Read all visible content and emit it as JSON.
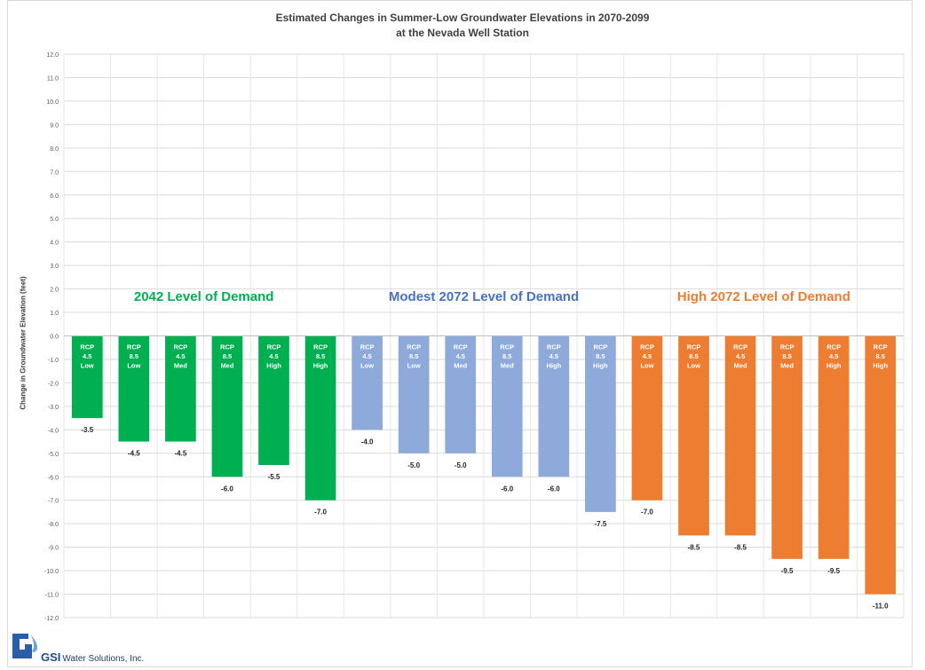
{
  "chart_data": {
    "type": "bar",
    "title": "Estimated Changes in Summer-Low Groundwater Elevations in 2070-2099",
    "subtitle": "at the Nevada Well Station",
    "ylabel": "Change in Groundwater Elevation (feet)",
    "xlabel": "",
    "ylim": [
      -12.0,
      12.0
    ],
    "yticks": [
      "12.0",
      "11.0",
      "10.0",
      "9.0",
      "8.0",
      "7.0",
      "6.0",
      "5.0",
      "4.0",
      "3.0",
      "2.0",
      "1.0",
      "0.0",
      "-1.0",
      "-2.0",
      "-3.0",
      "-4.0",
      "-5.0",
      "-6.0",
      "-7.0",
      "-8.0",
      "-9.0",
      "-10.0",
      "-11.0",
      "-12.0"
    ],
    "grid": true,
    "groups": [
      {
        "label": "2042 Level of Demand",
        "color": "#00b050",
        "bars": [
          {
            "category": [
              "RCP",
              "4.5",
              "Low"
            ],
            "value": -3.5,
            "label": "-3.5"
          },
          {
            "category": [
              "RCP",
              "8.5",
              "Low"
            ],
            "value": -4.5,
            "label": "-4.5"
          },
          {
            "category": [
              "RCP",
              "4.5",
              "Med"
            ],
            "value": -4.5,
            "label": "-4.5"
          },
          {
            "category": [
              "RCP",
              "8.5",
              "Med"
            ],
            "value": -6.0,
            "label": "-6.0"
          },
          {
            "category": [
              "RCP",
              "4.5",
              "High"
            ],
            "value": -5.5,
            "label": "-5.5"
          },
          {
            "category": [
              "RCP",
              "8.5",
              "High"
            ],
            "value": -7.0,
            "label": "-7.0"
          }
        ]
      },
      {
        "label": "Modest 2072 Level of Demand",
        "color": "#8eaadb",
        "text_color": "#4472c4",
        "bars": [
          {
            "category": [
              "RCP",
              "4.5",
              "Low"
            ],
            "value": -4.0,
            "label": "-4.0"
          },
          {
            "category": [
              "RCP",
              "8.5",
              "Low"
            ],
            "value": -5.0,
            "label": "-5.0"
          },
          {
            "category": [
              "RCP",
              "4.5",
              "Med"
            ],
            "value": -5.0,
            "label": "-5.0"
          },
          {
            "category": [
              "RCP",
              "8.5",
              "Med"
            ],
            "value": -6.0,
            "label": "-6.0"
          },
          {
            "category": [
              "RCP",
              "4.5",
              "High"
            ],
            "value": -6.0,
            "label": "-6.0"
          },
          {
            "category": [
              "RCP",
              "8.5",
              "High"
            ],
            "value": -7.5,
            "label": "-7.5"
          }
        ]
      },
      {
        "label": "High 2072 Level of Demand",
        "color": "#ed7d31",
        "bars": [
          {
            "category": [
              "RCP",
              "4.5",
              "Low"
            ],
            "value": -7.0,
            "label": "-7.0"
          },
          {
            "category": [
              "RCP",
              "8.5",
              "Low"
            ],
            "value": -8.5,
            "label": "-8.5"
          },
          {
            "category": [
              "RCP",
              "4.5",
              "Med"
            ],
            "value": -8.5,
            "label": "-8.5"
          },
          {
            "category": [
              "RCP",
              "8.5",
              "Med"
            ],
            "value": -9.5,
            "label": "-9.5"
          },
          {
            "category": [
              "RCP",
              "4.5",
              "High"
            ],
            "value": -9.5,
            "label": "-9.5"
          },
          {
            "category": [
              "RCP",
              "8.5",
              "High"
            ],
            "value": -11.0,
            "label": "-11.0"
          }
        ]
      }
    ]
  },
  "logo": {
    "brand": "GSI",
    "company": "Water Solutions, Inc."
  }
}
